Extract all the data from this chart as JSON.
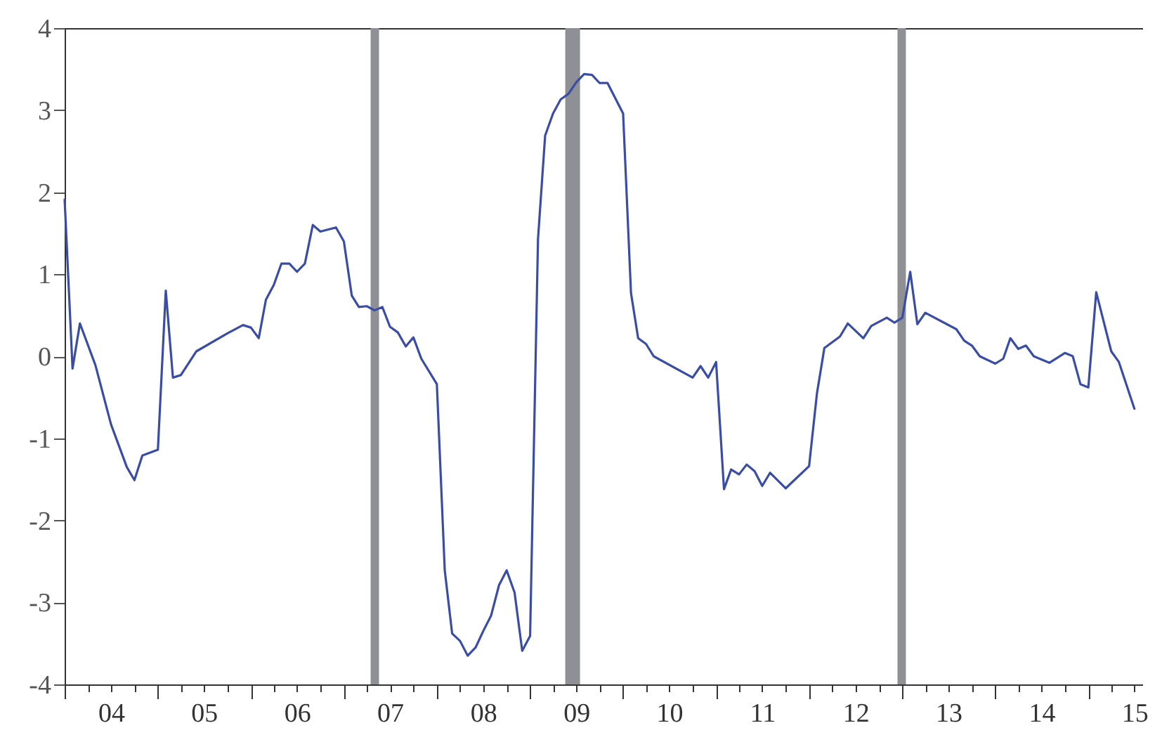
{
  "chart_data": {
    "type": "line",
    "grid": false,
    "marker": "none",
    "line_style": "solid",
    "xlim": [
      "2004-01",
      "2015-08"
    ],
    "ylim": [
      -4,
      4
    ],
    "yticks": [
      -4,
      -3,
      -2,
      -1,
      0,
      1,
      2,
      3,
      4
    ],
    "xticks": [
      {
        "value": "2004",
        "label": null
      },
      {
        "value": "2004-04",
        "label": null
      },
      {
        "value": "2004-07",
        "label": "04"
      },
      {
        "value": "2004-10",
        "label": null
      },
      {
        "value": "2005",
        "label": null
      },
      {
        "value": "2005-04",
        "label": null
      },
      {
        "value": "2005-07",
        "label": "05"
      },
      {
        "value": "2005-10",
        "label": null
      },
      {
        "value": "2006",
        "label": null
      },
      {
        "value": "2006-04",
        "label": null
      },
      {
        "value": "2006-07",
        "label": "06"
      },
      {
        "value": "2006-10",
        "label": null
      },
      {
        "value": "2007",
        "label": null
      },
      {
        "value": "2007-04",
        "label": null
      },
      {
        "value": "2007-07",
        "label": "07"
      },
      {
        "value": "2007-10",
        "label": null
      },
      {
        "value": "2008",
        "label": null
      },
      {
        "value": "2008-04",
        "label": null
      },
      {
        "value": "2008-07",
        "label": "08"
      },
      {
        "value": "2008-10",
        "label": null
      },
      {
        "value": "2009",
        "label": null
      },
      {
        "value": "2009-04",
        "label": null
      },
      {
        "value": "2009-07",
        "label": "09"
      },
      {
        "value": "2009-10",
        "label": null
      },
      {
        "value": "2010",
        "label": null
      },
      {
        "value": "2010-04",
        "label": null
      },
      {
        "value": "2010-07",
        "label": "10"
      },
      {
        "value": "2010-10",
        "label": null
      },
      {
        "value": "2011",
        "label": null
      },
      {
        "value": "2011-04",
        "label": null
      },
      {
        "value": "2011-07",
        "label": "11"
      },
      {
        "value": "2011-10",
        "label": null
      },
      {
        "value": "2012",
        "label": null
      },
      {
        "value": "2012-04",
        "label": null
      },
      {
        "value": "2012-07",
        "label": "12"
      },
      {
        "value": "2012-10",
        "label": null
      },
      {
        "value": "2013",
        "label": null
      },
      {
        "value": "2013-04",
        "label": null
      },
      {
        "value": "2013-07",
        "label": "13"
      },
      {
        "value": "2013-10",
        "label": null
      },
      {
        "value": "2014",
        "label": null
      },
      {
        "value": "2014-04",
        "label": null
      },
      {
        "value": "2014-07",
        "label": "14"
      },
      {
        "value": "2014-10",
        "label": null
      },
      {
        "value": "2015",
        "label": null
      },
      {
        "value": "2015-04",
        "label": null
      },
      {
        "value": "2015-07",
        "label": "15"
      }
    ],
    "bands": [
      {
        "axis": "x",
        "from": "2007-04-16",
        "to": "2007-05-19",
        "color": "#8f9095"
      },
      {
        "axis": "x",
        "from": "2009-05-19",
        "to": "2009-07-16",
        "color": "#8f9095"
      },
      {
        "axis": "x",
        "from": "2012-12-13",
        "to": "2013-01-15",
        "color": "#8f9095"
      }
    ],
    "series": [
      {
        "color": "#3a4da6",
        "x": [
          "2004-01",
          "2004-02",
          "2004-03",
          "2004-05",
          "2004-07",
          "2004-09",
          "2004-10",
          "2004-11",
          "2005-01",
          "2005-02",
          "2005-03",
          "2005-04",
          "2005-06",
          "2005-10",
          "2005-12",
          "2006-01",
          "2006-02",
          "2006-03",
          "2006-04",
          "2006-05",
          "2006-06",
          "2006-07",
          "2006-08",
          "2006-09",
          "2006-10",
          "2006-12",
          "2007-01",
          "2007-02",
          "2007-03",
          "2007-04",
          "2007-05",
          "2007-06",
          "2007-07",
          "2007-08",
          "2007-09",
          "2007-10",
          "2007-11",
          "2008-01",
          "2008-02",
          "2008-03",
          "2008-04",
          "2008-05",
          "2008-06",
          "2008-07",
          "2008-08",
          "2008-09",
          "2008-10",
          "2008-11",
          "2008-12",
          "2009-01",
          "2009-02",
          "2009-03",
          "2009-04",
          "2009-05",
          "2009-06",
          "2009-07",
          "2009-08",
          "2009-09",
          "2009-10",
          "2009-11",
          "2010-01",
          "2010-02",
          "2010-03",
          "2010-04",
          "2010-05",
          "2010-10",
          "2010-11",
          "2010-12",
          "2011-01",
          "2011-02",
          "2011-03",
          "2011-04",
          "2011-05",
          "2011-06",
          "2011-07",
          "2011-08",
          "2011-10",
          "2012-01",
          "2012-02",
          "2012-03",
          "2012-05",
          "2012-06",
          "2012-08",
          "2012-09",
          "2012-11",
          "2012-12",
          "2013-01",
          "2013-02",
          "2013-03",
          "2013-04",
          "2013-08",
          "2013-09",
          "2013-10",
          "2013-11",
          "2014-01",
          "2014-02",
          "2014-03",
          "2014-04",
          "2014-05",
          "2014-06",
          "2014-08",
          "2014-10",
          "2014-11",
          "2014-12",
          "2015-01",
          "2015-02",
          "2015-04",
          "2015-05",
          "2015-07"
        ],
        "values": [
          1.91,
          -0.15,
          0.4,
          -0.11,
          -0.83,
          -1.35,
          -1.51,
          -1.21,
          -1.14,
          0.8,
          -0.26,
          -0.23,
          0.06,
          0.28,
          0.38,
          0.35,
          0.22,
          0.69,
          0.87,
          1.13,
          1.13,
          1.03,
          1.13,
          1.6,
          1.52,
          1.57,
          1.4,
          0.74,
          0.6,
          0.61,
          0.56,
          0.6,
          0.36,
          0.29,
          0.12,
          0.23,
          -0.03,
          -0.34,
          -2.61,
          -3.38,
          -3.47,
          -3.65,
          -3.55,
          -3.35,
          -3.16,
          -2.79,
          -2.61,
          -2.88,
          -3.59,
          -3.41,
          1.43,
          2.69,
          2.96,
          3.13,
          3.2,
          3.34,
          3.44,
          3.43,
          3.33,
          3.33,
          2.96,
          0.77,
          0.22,
          0.15,
          0,
          -0.26,
          -0.12,
          -0.26,
          -0.07,
          -1.62,
          -1.38,
          -1.44,
          -1.32,
          -1.4,
          -1.58,
          -1.42,
          -1.61,
          -1.34,
          -0.45,
          0.1,
          0.24,
          0.4,
          0.22,
          0.37,
          0.47,
          0.41,
          0.47,
          1.03,
          0.39,
          0.53,
          0.33,
          0.19,
          0.13,
          0,
          -0.09,
          -0.03,
          0.22,
          0.09,
          0.13,
          0,
          -0.08,
          0.04,
          0,
          -0.34,
          -0.38,
          0.78,
          0.06,
          -0.07,
          -0.64
        ]
      }
    ]
  }
}
